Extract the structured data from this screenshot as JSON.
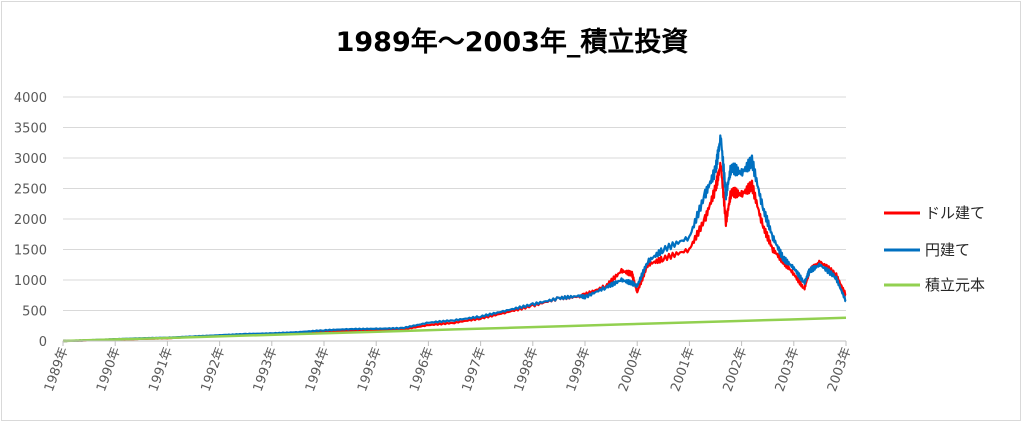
{
  "chart_data": {
    "type": "line",
    "title": "1989年～2003年_積立投資",
    "xlabel": "",
    "ylabel": "",
    "ylim": [
      0,
      4000
    ],
    "y_ticks": [
      0,
      500,
      1000,
      1500,
      2000,
      2500,
      3000,
      3500,
      4000
    ],
    "x_range": [
      1989.0,
      2004.0
    ],
    "x_ticks": [
      {
        "x": 1989,
        "label": "1989年"
      },
      {
        "x": 1990,
        "label": "1990年"
      },
      {
        "x": 1991,
        "label": "1991年"
      },
      {
        "x": 1992,
        "label": "1992年"
      },
      {
        "x": 1993,
        "label": "1993年"
      },
      {
        "x": 1994,
        "label": "1994年"
      },
      {
        "x": 1995,
        "label": "1995年"
      },
      {
        "x": 1996,
        "label": "1996年"
      },
      {
        "x": 1997,
        "label": "1997年"
      },
      {
        "x": 1998,
        "label": "1998年"
      },
      {
        "x": 1999,
        "label": "1999年"
      },
      {
        "x": 2000,
        "label": "2000年"
      },
      {
        "x": 2001,
        "label": "2001年"
      },
      {
        "x": 2002,
        "label": "2002年"
      },
      {
        "x": 2003,
        "label": "2003年"
      },
      {
        "x": 2004,
        "label": "2003年"
      }
    ],
    "grid": "horizontal",
    "legend_position": "right",
    "series": [
      {
        "name": "ドル建て",
        "color": "#ff0000",
        "points": [
          [
            1989.0,
            0
          ],
          [
            1989.5,
            10
          ],
          [
            1990.0,
            25
          ],
          [
            1990.5,
            35
          ],
          [
            1991.0,
            45
          ],
          [
            1991.5,
            70
          ],
          [
            1992.0,
            90
          ],
          [
            1992.5,
            105
          ],
          [
            1993.0,
            115
          ],
          [
            1993.5,
            130
          ],
          [
            1994.0,
            150
          ],
          [
            1994.5,
            165
          ],
          [
            1995.0,
            175
          ],
          [
            1995.5,
            190
          ],
          [
            1996.0,
            260
          ],
          [
            1996.5,
            300
          ],
          [
            1997.0,
            370
          ],
          [
            1997.5,
            470
          ],
          [
            1998.0,
            580
          ],
          [
            1998.5,
            700
          ],
          [
            1998.9,
            730
          ],
          [
            1999.0,
            760
          ],
          [
            1999.4,
            900
          ],
          [
            1999.7,
            1150
          ],
          [
            1999.9,
            1100
          ],
          [
            2000.0,
            800
          ],
          [
            2000.2,
            1250
          ],
          [
            2000.5,
            1350
          ],
          [
            2001.0,
            1500
          ],
          [
            2001.3,
            2000
          ],
          [
            2001.5,
            2500
          ],
          [
            2001.6,
            2900
          ],
          [
            2001.7,
            1950
          ],
          [
            2001.8,
            2450
          ],
          [
            2002.0,
            2400
          ],
          [
            2002.2,
            2550
          ],
          [
            2002.4,
            1900
          ],
          [
            2002.6,
            1500
          ],
          [
            2002.8,
            1300
          ],
          [
            2003.0,
            1100
          ],
          [
            2003.2,
            850
          ],
          [
            2003.3,
            1150
          ],
          [
            2003.5,
            1300
          ],
          [
            2003.8,
            1100
          ],
          [
            2004.0,
            750
          ]
        ]
      },
      {
        "name": "円建て",
        "color": "#0070c0",
        "points": [
          [
            1989.0,
            0
          ],
          [
            1989.5,
            12
          ],
          [
            1990.0,
            30
          ],
          [
            1990.5,
            45
          ],
          [
            1991.0,
            55
          ],
          [
            1991.5,
            75
          ],
          [
            1992.0,
            95
          ],
          [
            1992.5,
            115
          ],
          [
            1993.0,
            125
          ],
          [
            1993.5,
            145
          ],
          [
            1994.0,
            175
          ],
          [
            1994.5,
            195
          ],
          [
            1995.0,
            200
          ],
          [
            1995.5,
            210
          ],
          [
            1996.0,
            300
          ],
          [
            1996.5,
            340
          ],
          [
            1997.0,
            400
          ],
          [
            1997.5,
            500
          ],
          [
            1998.0,
            600
          ],
          [
            1998.5,
            700
          ],
          [
            1998.9,
            740
          ],
          [
            1999.0,
            720
          ],
          [
            1999.4,
            880
          ],
          [
            1999.7,
            1000
          ],
          [
            1999.9,
            950
          ],
          [
            2000.0,
            900
          ],
          [
            2000.2,
            1300
          ],
          [
            2000.5,
            1500
          ],
          [
            2001.0,
            1700
          ],
          [
            2001.3,
            2400
          ],
          [
            2001.5,
            2800
          ],
          [
            2001.6,
            3350
          ],
          [
            2001.7,
            2400
          ],
          [
            2001.8,
            2850
          ],
          [
            2002.0,
            2750
          ],
          [
            2002.2,
            2950
          ],
          [
            2002.4,
            2200
          ],
          [
            2002.6,
            1700
          ],
          [
            2002.8,
            1350
          ],
          [
            2003.0,
            1200
          ],
          [
            2003.2,
            950
          ],
          [
            2003.3,
            1150
          ],
          [
            2003.5,
            1250
          ],
          [
            2003.8,
            1050
          ],
          [
            2004.0,
            650
          ]
        ]
      },
      {
        "name": "積立元本",
        "color": "#92d050",
        "points": [
          [
            1989.0,
            0
          ],
          [
            2004.0,
            380
          ]
        ]
      }
    ]
  }
}
